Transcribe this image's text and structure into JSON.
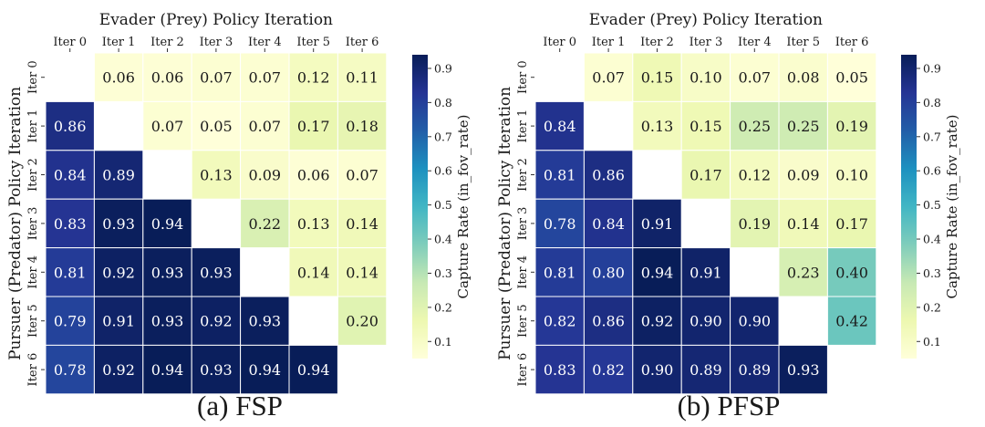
{
  "chart_data": [
    {
      "type": "heatmap",
      "title": "",
      "caption": "(a) FSP",
      "xlabel": "Evader (Prey) Policy Iteration",
      "ylabel": "Pursuer (Predator) Policy Iteration",
      "x_categories": [
        "Iter 0",
        "Iter 1",
        "Iter 2",
        "Iter 3",
        "Iter 4",
        "Iter 5",
        "Iter 6"
      ],
      "y_categories": [
        "Iter 0",
        "Iter 1",
        "Iter 2",
        "Iter 3",
        "Iter 4",
        "Iter 5",
        "Iter 6"
      ],
      "values": [
        [
          null,
          0.06,
          0.06,
          0.07,
          0.07,
          0.12,
          0.11
        ],
        [
          0.86,
          null,
          0.07,
          0.05,
          0.07,
          0.17,
          0.18
        ],
        [
          0.84,
          0.89,
          null,
          0.13,
          0.09,
          0.06,
          0.07
        ],
        [
          0.83,
          0.93,
          0.94,
          null,
          0.22,
          0.13,
          0.14
        ],
        [
          0.81,
          0.92,
          0.93,
          0.93,
          null,
          0.14,
          0.14
        ],
        [
          0.79,
          0.91,
          0.93,
          0.92,
          0.93,
          null,
          0.2
        ],
        [
          0.78,
          0.92,
          0.94,
          0.93,
          0.94,
          0.94,
          null
        ]
      ],
      "colorbar": {
        "label": "Capture Rate (in_fov_rate)",
        "min": 0.05,
        "max": 0.94,
        "ticks": [
          "0.1",
          "0.2",
          "0.3",
          "0.4",
          "0.5",
          "0.6",
          "0.7",
          "0.8",
          "0.9"
        ],
        "colormap": "YlGnBu"
      },
      "grid": true
    },
    {
      "type": "heatmap",
      "title": "",
      "caption": "(b) PFSP",
      "xlabel": "Evader (Prey) Policy Iteration",
      "ylabel": "Pursuer (Predator) Policy Iteration",
      "x_categories": [
        "Iter 0",
        "Iter 1",
        "Iter 2",
        "Iter 3",
        "Iter 4",
        "Iter 5",
        "Iter 6"
      ],
      "y_categories": [
        "Iter 0",
        "Iter 1",
        "Iter 2",
        "Iter 3",
        "Iter 4",
        "Iter 5",
        "Iter 6"
      ],
      "values": [
        [
          null,
          0.07,
          0.15,
          0.1,
          0.07,
          0.08,
          0.05
        ],
        [
          0.84,
          null,
          0.13,
          0.15,
          0.25,
          0.25,
          0.19
        ],
        [
          0.81,
          0.86,
          null,
          0.17,
          0.12,
          0.09,
          0.1
        ],
        [
          0.78,
          0.84,
          0.91,
          null,
          0.19,
          0.14,
          0.17
        ],
        [
          0.81,
          0.8,
          0.94,
          0.91,
          null,
          0.23,
          0.4
        ],
        [
          0.82,
          0.86,
          0.92,
          0.9,
          0.9,
          null,
          0.42
        ],
        [
          0.83,
          0.82,
          0.9,
          0.89,
          0.89,
          0.93,
          null
        ]
      ],
      "colorbar": {
        "label": "Capture Rate (in_fov_rate)",
        "min": 0.05,
        "max": 0.94,
        "ticks": [
          "0.1",
          "0.2",
          "0.3",
          "0.4",
          "0.5",
          "0.6",
          "0.7",
          "0.8",
          "0.9"
        ],
        "colormap": "YlGnBu"
      },
      "grid": true
    }
  ],
  "colors": {
    "ylgnbu_stops": [
      "#ffffd9",
      "#edf8b1",
      "#c7e9b4",
      "#7fcdbb",
      "#41b6c4",
      "#1d91c0",
      "#225ea8",
      "#253494",
      "#081d58"
    ],
    "grid_line": "#ffffff"
  }
}
